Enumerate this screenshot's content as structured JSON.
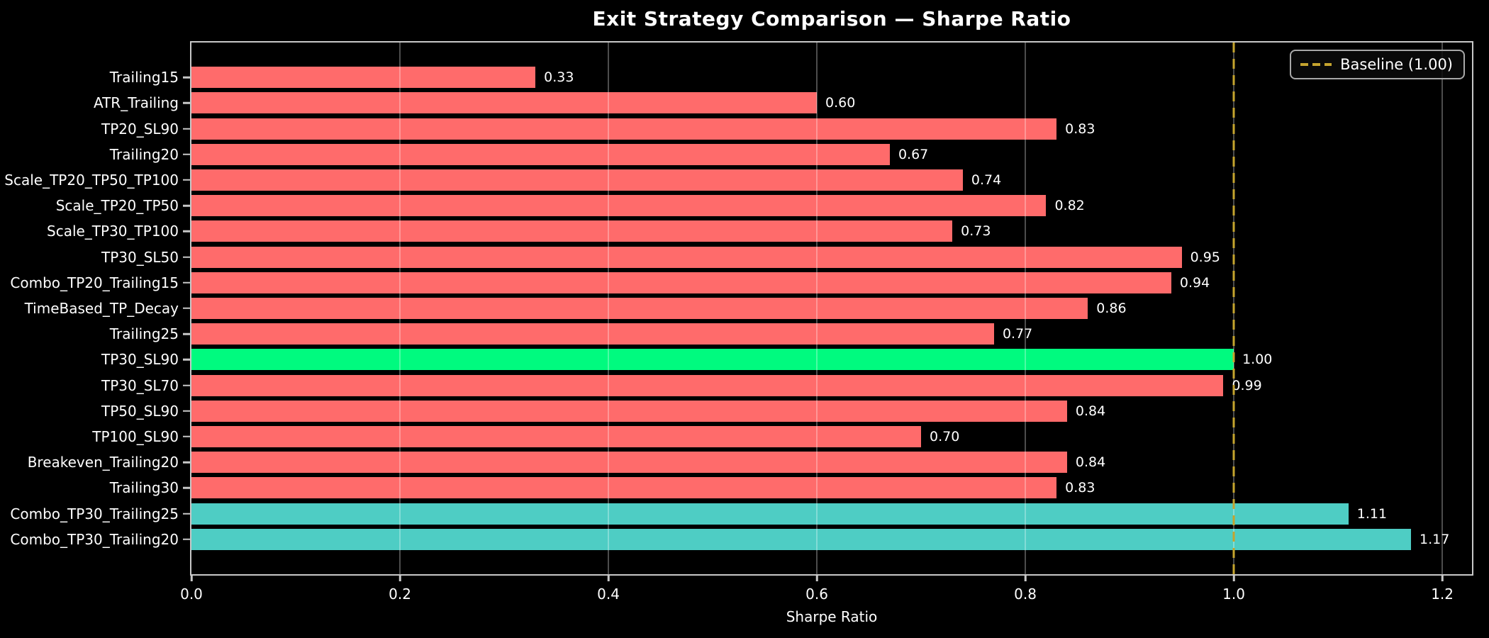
{
  "title": "Exit Strategy Comparison — Sharpe Ratio",
  "xlabel": "Sharpe Ratio",
  "legend": {
    "label": "Baseline (1.00)"
  },
  "colors": {
    "background": "#000000",
    "text": "#FFFFFF",
    "spine": "#C8C8C8",
    "grid": "rgba(255,255,255,0.30)",
    "default_bar": "#FF6B6B",
    "highlight_bar": "#00FA7F",
    "combo_bar": "#4ECDC4",
    "baseline_line": "#C5A42E"
  },
  "chart_data": {
    "type": "bar",
    "orientation": "horizontal",
    "title": "Exit Strategy Comparison — Sharpe Ratio",
    "xlabel": "Sharpe Ratio",
    "ylabel": "",
    "xlim": [
      0,
      1.2285
    ],
    "grid": true,
    "legend_position": "upper right",
    "baseline": 1.0,
    "baseline_label": "Baseline (1.00)",
    "xticks": [
      {
        "value": 0.0,
        "label": "0.0"
      },
      {
        "value": 0.2,
        "label": "0.2"
      },
      {
        "value": 0.4,
        "label": "0.4"
      },
      {
        "value": 0.6,
        "label": "0.6"
      },
      {
        "value": 0.8,
        "label": "0.8"
      },
      {
        "value": 1.0,
        "label": "1.0"
      },
      {
        "value": 1.2,
        "label": "1.2"
      }
    ],
    "bars": [
      {
        "label": "Trailing15",
        "value": 0.33,
        "value_label": "0.33",
        "color": "#FF6B6B"
      },
      {
        "label": "ATR_Trailing",
        "value": 0.6,
        "value_label": "0.60",
        "color": "#FF6B6B"
      },
      {
        "label": "TP20_SL90",
        "value": 0.83,
        "value_label": "0.83",
        "color": "#FF6B6B"
      },
      {
        "label": "Trailing20",
        "value": 0.67,
        "value_label": "0.67",
        "color": "#FF6B6B"
      },
      {
        "label": "Scale_TP20_TP50_TP100",
        "value": 0.74,
        "value_label": "0.74",
        "color": "#FF6B6B"
      },
      {
        "label": "Scale_TP20_TP50",
        "value": 0.82,
        "value_label": "0.82",
        "color": "#FF6B6B"
      },
      {
        "label": "Scale_TP30_TP100",
        "value": 0.73,
        "value_label": "0.73",
        "color": "#FF6B6B"
      },
      {
        "label": "TP30_SL50",
        "value": 0.95,
        "value_label": "0.95",
        "color": "#FF6B6B"
      },
      {
        "label": "Combo_TP20_Trailing15",
        "value": 0.94,
        "value_label": "0.94",
        "color": "#FF6B6B"
      },
      {
        "label": "TimeBased_TP_Decay",
        "value": 0.86,
        "value_label": "0.86",
        "color": "#FF6B6B"
      },
      {
        "label": "Trailing25",
        "value": 0.77,
        "value_label": "0.77",
        "color": "#FF6B6B"
      },
      {
        "label": "TP30_SL90",
        "value": 1.0,
        "value_label": "1.00",
        "color": "#00FA7F"
      },
      {
        "label": "TP30_SL70",
        "value": 0.99,
        "value_label": "0.99",
        "color": "#FF6B6B"
      },
      {
        "label": "TP50_SL90",
        "value": 0.84,
        "value_label": "0.84",
        "color": "#FF6B6B"
      },
      {
        "label": "TP100_SL90",
        "value": 0.7,
        "value_label": "0.70",
        "color": "#FF6B6B"
      },
      {
        "label": "Breakeven_Trailing20",
        "value": 0.84,
        "value_label": "0.84",
        "color": "#FF6B6B"
      },
      {
        "label": "Trailing30",
        "value": 0.83,
        "value_label": "0.83",
        "color": "#FF6B6B"
      },
      {
        "label": "Combo_TP30_Trailing25",
        "value": 1.11,
        "value_label": "1.11",
        "color": "#4ECDC4"
      },
      {
        "label": "Combo_TP30_Trailing20",
        "value": 1.17,
        "value_label": "1.17",
        "color": "#4ECDC4"
      }
    ]
  }
}
